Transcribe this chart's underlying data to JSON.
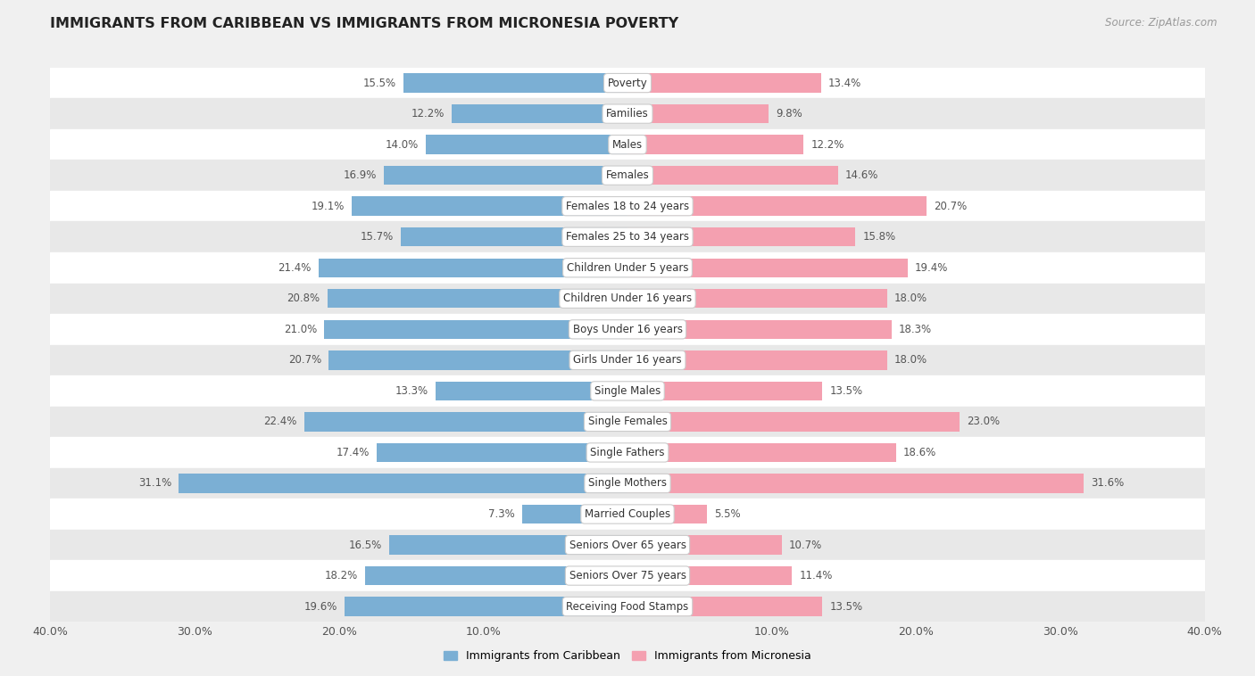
{
  "title": "IMMIGRANTS FROM CARIBBEAN VS IMMIGRANTS FROM MICRONESIA POVERTY",
  "source": "Source: ZipAtlas.com",
  "categories": [
    "Poverty",
    "Families",
    "Males",
    "Females",
    "Females 18 to 24 years",
    "Females 25 to 34 years",
    "Children Under 5 years",
    "Children Under 16 years",
    "Boys Under 16 years",
    "Girls Under 16 years",
    "Single Males",
    "Single Females",
    "Single Fathers",
    "Single Mothers",
    "Married Couples",
    "Seniors Over 65 years",
    "Seniors Over 75 years",
    "Receiving Food Stamps"
  ],
  "caribbean_values": [
    15.5,
    12.2,
    14.0,
    16.9,
    19.1,
    15.7,
    21.4,
    20.8,
    21.0,
    20.7,
    13.3,
    22.4,
    17.4,
    31.1,
    7.3,
    16.5,
    18.2,
    19.6
  ],
  "micronesia_values": [
    13.4,
    9.8,
    12.2,
    14.6,
    20.7,
    15.8,
    19.4,
    18.0,
    18.3,
    18.0,
    13.5,
    23.0,
    18.6,
    31.6,
    5.5,
    10.7,
    11.4,
    13.5
  ],
  "caribbean_color": "#7bafd4",
  "micronesia_color": "#f4a0b0",
  "background_color": "#f0f0f0",
  "row_light": "#ffffff",
  "row_dark": "#e8e8e8",
  "xlim": 40.0,
  "bar_height": 0.62,
  "legend_label_caribbean": "Immigrants from Caribbean",
  "legend_label_micronesia": "Immigrants from Micronesia"
}
